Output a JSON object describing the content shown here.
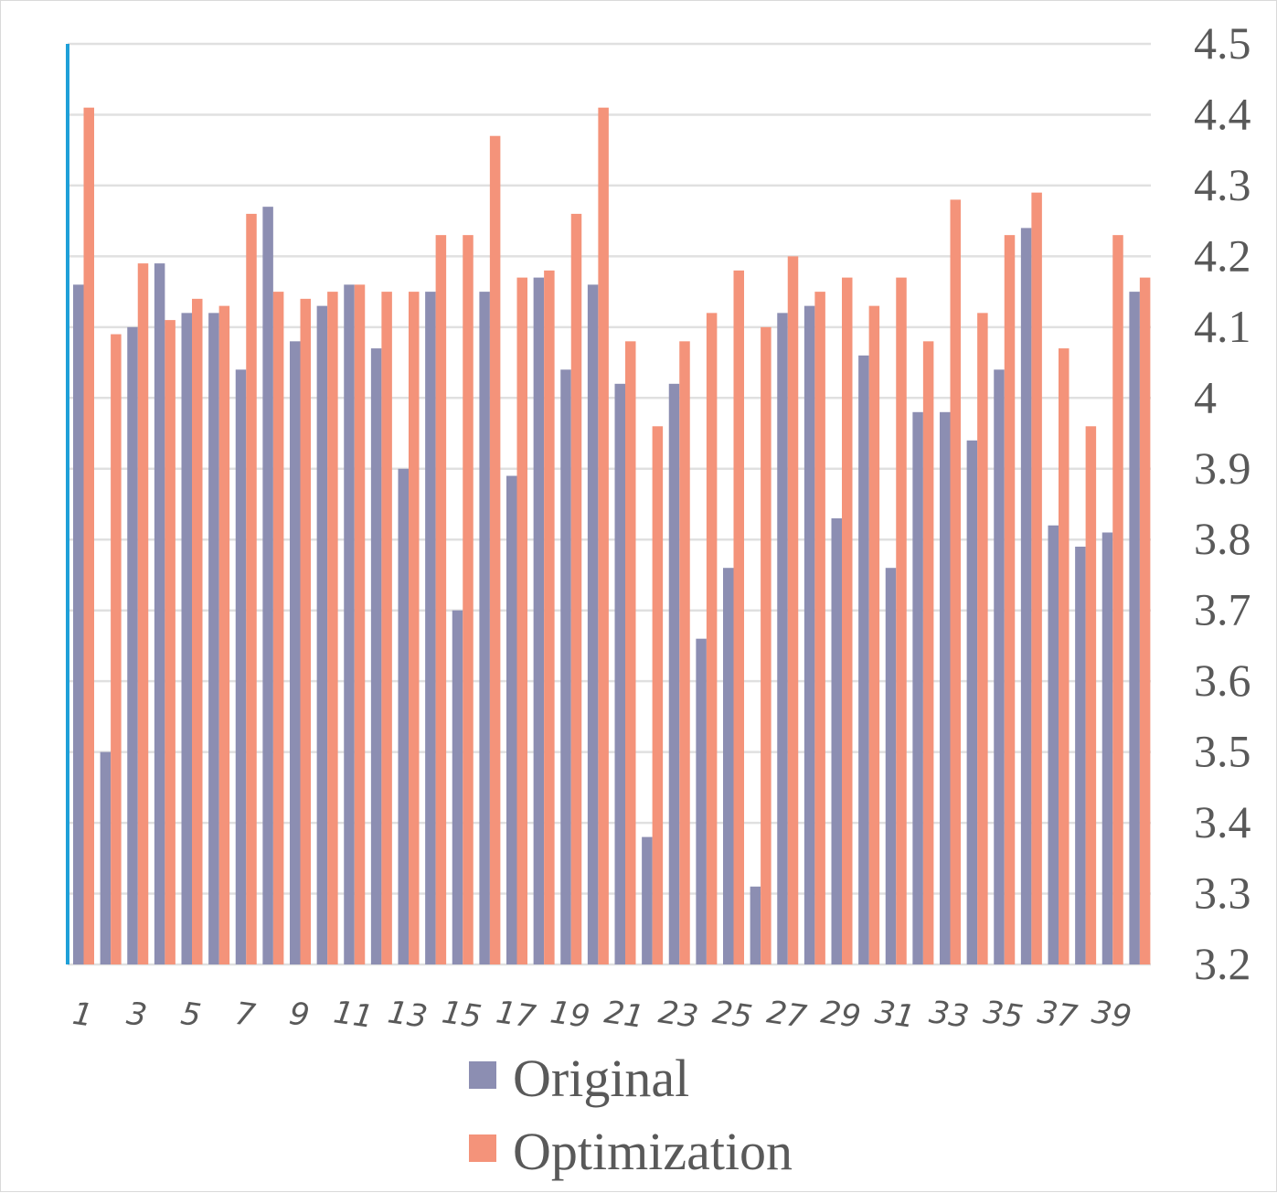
{
  "chart_data": {
    "type": "bar",
    "title": "",
    "xlabel": "",
    "ylabel": "",
    "ylim": [
      3.2,
      4.5
    ],
    "y_ticks": [
      "3.2",
      "3.3",
      "3.4",
      "3.5",
      "3.6",
      "3.7",
      "3.8",
      "3.9",
      "4",
      "4.1",
      "4.2",
      "4.3",
      "4.4",
      "4.5"
    ],
    "y_axis_side": "right",
    "grid": true,
    "legend_position": "bottom",
    "categories": [
      1,
      2,
      3,
      4,
      5,
      6,
      7,
      8,
      9,
      10,
      11,
      12,
      13,
      14,
      15,
      16,
      17,
      18,
      19,
      20,
      21,
      22,
      23,
      24,
      25,
      26,
      27,
      28,
      29,
      30,
      31,
      32,
      33,
      34,
      35,
      36,
      37,
      38,
      39,
      40
    ],
    "x_tick_labels": [
      "1",
      "3",
      "5",
      "7",
      "9",
      "11",
      "13",
      "15",
      "17",
      "19",
      "21",
      "23",
      "25",
      "27",
      "29",
      "31",
      "33",
      "35",
      "37",
      "39"
    ],
    "series": [
      {
        "name": "Original",
        "color": "#8c8eb2",
        "values": [
          4.16,
          3.5,
          4.1,
          4.19,
          4.12,
          4.12,
          4.04,
          4.27,
          4.08,
          4.13,
          4.16,
          4.07,
          3.9,
          4.15,
          3.7,
          4.15,
          3.89,
          4.17,
          4.04,
          4.16,
          4.02,
          3.38,
          4.02,
          3.66,
          3.76,
          3.31,
          4.12,
          4.13,
          3.83,
          4.06,
          3.76,
          3.98,
          3.98,
          3.94,
          4.04,
          4.24,
          3.82,
          3.79,
          3.81,
          4.15
        ]
      },
      {
        "name": "Optimization",
        "color": "#f4937a",
        "values": [
          4.41,
          4.09,
          4.19,
          4.11,
          4.14,
          4.13,
          4.26,
          4.15,
          4.14,
          4.15,
          4.16,
          4.15,
          4.15,
          4.23,
          4.23,
          4.37,
          4.17,
          4.18,
          4.26,
          4.41,
          4.08,
          3.96,
          4.08,
          4.12,
          4.18,
          4.1,
          4.2,
          4.15,
          4.17,
          4.13,
          4.17,
          4.08,
          4.28,
          4.12,
          4.23,
          4.29,
          4.07,
          3.96,
          4.23,
          4.17
        ]
      }
    ],
    "axis_line_color": "#1fa0d8",
    "grid_color": "#e0e0e0"
  }
}
